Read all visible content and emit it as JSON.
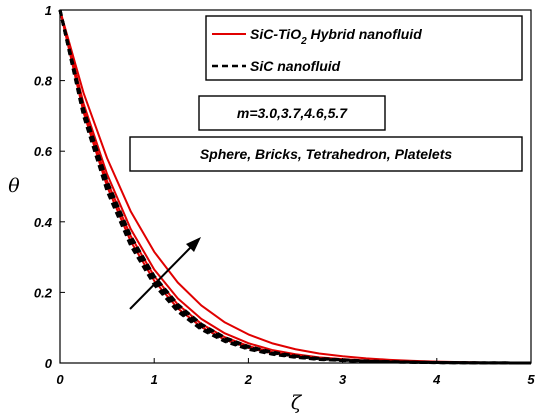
{
  "chart_data": {
    "type": "line",
    "xlabel": "ζ",
    "ylabel": "θ",
    "xlim": [
      0,
      5
    ],
    "ylim": [
      0,
      1
    ],
    "xticks": [
      "0",
      "1",
      "2",
      "3",
      "4",
      "5"
    ],
    "yticks": [
      "0",
      "0.2",
      "0.4",
      "0.6",
      "0.8",
      "1"
    ],
    "grid": false,
    "legend_position": "top-right",
    "legend": [
      {
        "label_main": "SiC-TiO",
        "label_sub": "2",
        "label_tail": " Hybrid nanofluid",
        "color": "#e00000",
        "style": "solid"
      },
      {
        "label_main": "SiC nanofluid",
        "color": "#000000",
        "style": "dashed"
      }
    ],
    "annotations": {
      "m_values": "m=3.0,3.7,4.6,5.7",
      "shapes": "Sphere, Bricks, Tetrahedron, Platelets"
    },
    "x": [
      0,
      0.25,
      0.5,
      0.75,
      1.0,
      1.25,
      1.5,
      1.75,
      2.0,
      2.25,
      2.5,
      2.75,
      3.0,
      3.25,
      3.5,
      3.75,
      4.0,
      4.25,
      4.5,
      4.75,
      5.0
    ],
    "series": [
      {
        "group": "hybrid",
        "color": "#e00000",
        "style": "solid",
        "values": [
          1.0,
          0.71,
          0.5,
          0.345,
          0.233,
          0.155,
          0.102,
          0.066,
          0.043,
          0.028,
          0.018,
          0.012,
          0.008,
          0.005,
          0.003,
          0.002,
          0.001,
          0.0007,
          0.0004,
          0.0002,
          0.0
        ]
      },
      {
        "group": "hybrid",
        "color": "#e00000",
        "style": "solid",
        "values": [
          1.0,
          0.72,
          0.515,
          0.36,
          0.246,
          0.166,
          0.111,
          0.073,
          0.048,
          0.031,
          0.02,
          0.013,
          0.009,
          0.006,
          0.004,
          0.002,
          0.0015,
          0.001,
          0.0005,
          0.0002,
          0.0
        ]
      },
      {
        "group": "hybrid",
        "color": "#e00000",
        "style": "solid",
        "values": [
          1.0,
          0.735,
          0.535,
          0.38,
          0.265,
          0.183,
          0.125,
          0.084,
          0.056,
          0.037,
          0.025,
          0.016,
          0.011,
          0.007,
          0.0045,
          0.003,
          0.002,
          0.0012,
          0.0007,
          0.0003,
          0.0
        ]
      },
      {
        "group": "hybrid",
        "color": "#e00000",
        "style": "solid",
        "values": [
          1.0,
          0.765,
          0.58,
          0.43,
          0.315,
          0.228,
          0.163,
          0.115,
          0.081,
          0.056,
          0.039,
          0.027,
          0.019,
          0.013,
          0.009,
          0.006,
          0.004,
          0.0025,
          0.0015,
          0.0007,
          0.0
        ]
      },
      {
        "group": "mono",
        "color": "#000000",
        "style": "dashed",
        "values": [
          1.0,
          0.7,
          0.487,
          0.333,
          0.222,
          0.146,
          0.095,
          0.061,
          0.039,
          0.025,
          0.016,
          0.01,
          0.007,
          0.004,
          0.003,
          0.002,
          0.001,
          0.0006,
          0.0003,
          0.0001,
          0.0
        ]
      },
      {
        "group": "mono",
        "color": "#000000",
        "style": "dashed",
        "values": [
          1.0,
          0.705,
          0.495,
          0.34,
          0.228,
          0.151,
          0.099,
          0.064,
          0.041,
          0.027,
          0.017,
          0.011,
          0.007,
          0.005,
          0.003,
          0.002,
          0.0012,
          0.0007,
          0.0004,
          0.0002,
          0.0
        ]
      },
      {
        "group": "mono",
        "color": "#000000",
        "style": "dashed",
        "values": [
          1.0,
          0.712,
          0.505,
          0.35,
          0.237,
          0.158,
          0.104,
          0.068,
          0.044,
          0.029,
          0.019,
          0.012,
          0.008,
          0.005,
          0.0035,
          0.002,
          0.0013,
          0.0008,
          0.0004,
          0.0002,
          0.0
        ]
      },
      {
        "group": "mono",
        "color": "#000000",
        "style": "dashed",
        "values": [
          1.0,
          0.72,
          0.515,
          0.36,
          0.246,
          0.166,
          0.11,
          0.072,
          0.047,
          0.031,
          0.02,
          0.013,
          0.009,
          0.006,
          0.004,
          0.0025,
          0.0015,
          0.0009,
          0.0005,
          0.0002,
          0.0
        ]
      }
    ]
  }
}
